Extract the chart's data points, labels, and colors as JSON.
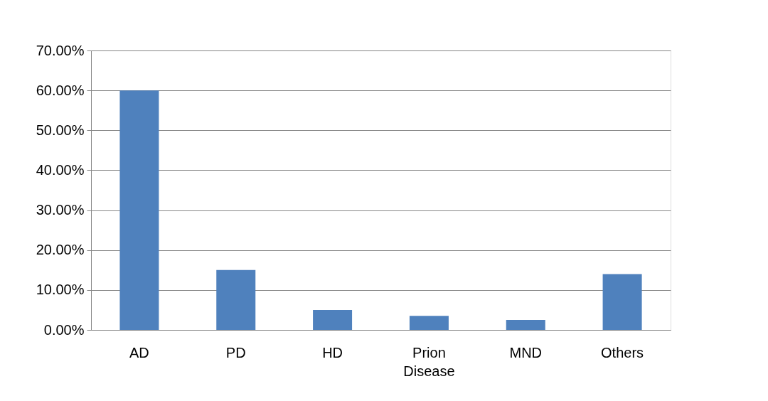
{
  "chart_data": {
    "type": "bar",
    "categories": [
      "AD",
      "PD",
      "HD",
      "Prion Disease",
      "MND",
      "Others"
    ],
    "values": [
      0.6,
      0.15,
      0.05,
      0.035,
      0.025,
      0.14
    ],
    "color": "#4f81bd",
    "ylim": [
      0,
      0.7
    ],
    "yticks": [
      {
        "value": 0,
        "label": "0.00%"
      },
      {
        "value": 0.1,
        "label": "10.00%"
      },
      {
        "value": 0.2,
        "label": "20.00%"
      },
      {
        "value": 0.3,
        "label": "30.00%"
      },
      {
        "value": 0.4,
        "label": "40.00%"
      },
      {
        "value": 0.5,
        "label": "50.00%"
      },
      {
        "value": 0.6,
        "label": "60.00%"
      },
      {
        "value": 0.7,
        "label": "70.00%"
      }
    ],
    "grid": "y"
  }
}
